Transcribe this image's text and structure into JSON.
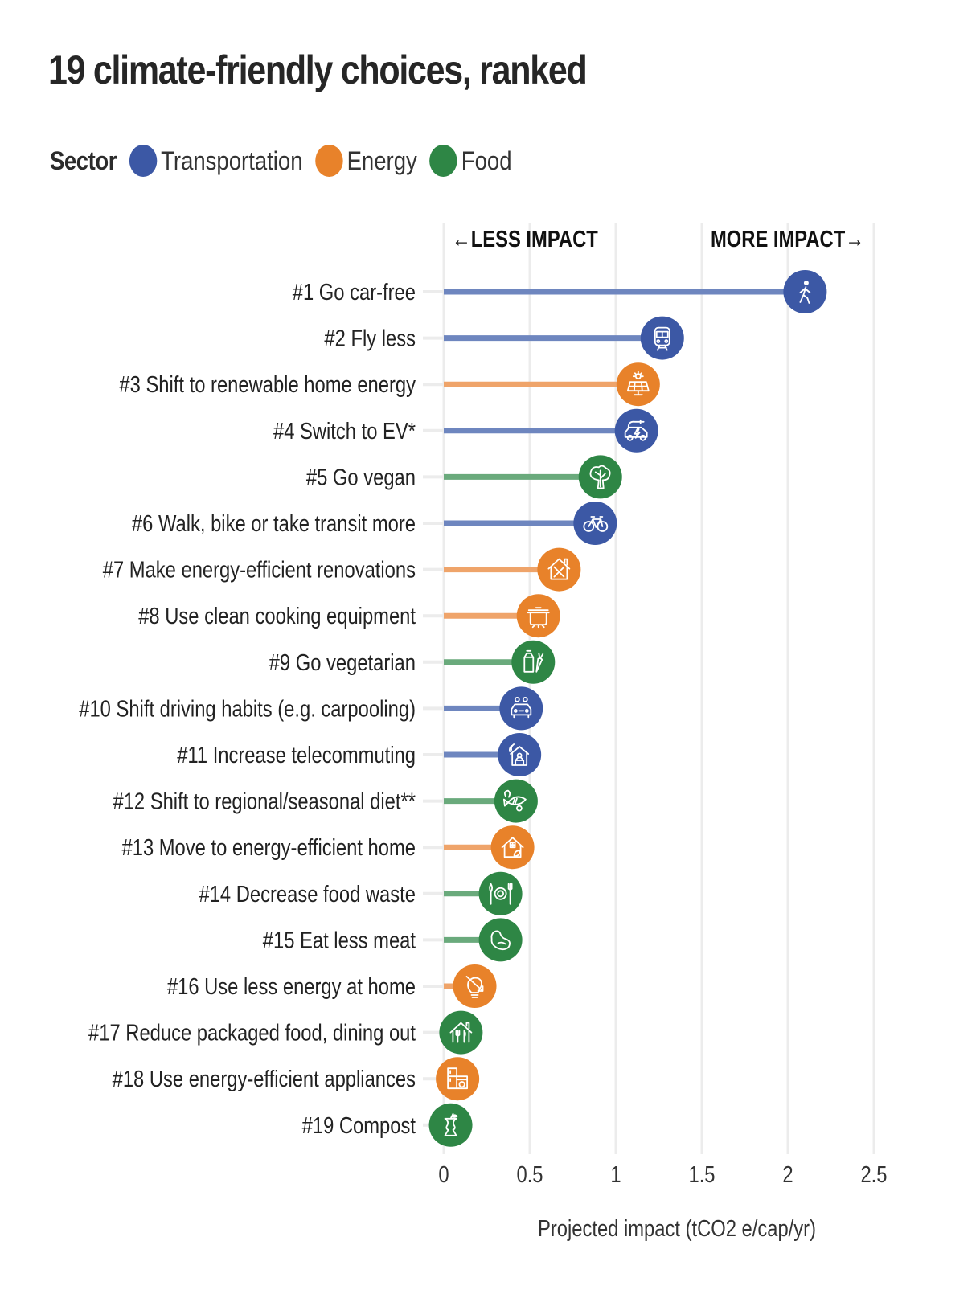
{
  "title": "19 climate-friendly choices, ranked",
  "legend": {
    "title": "Sector",
    "items": [
      {
        "label": "Transportation",
        "color": "#3c58a5"
      },
      {
        "label": "Energy",
        "color": "#e8822a"
      },
      {
        "label": "Food",
        "color": "#2e8645"
      }
    ]
  },
  "chart_data": {
    "type": "lollipop-bar",
    "title": "19 climate-friendly choices, ranked",
    "xlabel": "Projected impact (tCO2 e/cap/yr)",
    "ylabel": "",
    "xlim": [
      0,
      2.5
    ],
    "xticks": [
      0,
      0.5,
      1,
      1.5,
      2,
      2.5
    ],
    "xtick_labels": [
      "0",
      "0.5",
      "1",
      "1.5",
      "2",
      "2.5"
    ],
    "grid": true,
    "legend_position": "top-left",
    "direction_labels": {
      "less": "←LESS IMPACT",
      "more": "MORE IMPACT→"
    },
    "sector_colors": {
      "Transportation": {
        "dot": "#3c58a5",
        "line": "#6e86bf"
      },
      "Energy": {
        "dot": "#e8822a",
        "line": "#efa46a"
      },
      "Food": {
        "dot": "#2e8645",
        "line": "#6aaa7c"
      }
    },
    "categories": [
      "#1 Go car-free",
      "#2 Fly less",
      "#3 Shift to renewable home energy",
      "#4 Switch to EV*",
      "#5 Go vegan",
      "#6 Walk, bike or take transit more",
      "#7 Make energy-efficient renovations",
      "#8 Use clean cooking equipment",
      "#9 Go vegetarian",
      "#10 Shift driving habits (e.g. carpooling)",
      "#11 Increase telecommuting",
      "#12 Shift to regional/seasonal diet**",
      "#13 Move to energy-efficient home",
      "#14 Decrease food waste",
      "#15 Eat less meat",
      "#16 Use less energy at home",
      "#17 Reduce packaged food, dining out",
      "#18 Use energy-efficient appliances",
      "#19 Compost"
    ],
    "sectors": [
      "Transportation",
      "Transportation",
      "Energy",
      "Transportation",
      "Food",
      "Transportation",
      "Energy",
      "Energy",
      "Food",
      "Transportation",
      "Transportation",
      "Food",
      "Energy",
      "Food",
      "Food",
      "Energy",
      "Food",
      "Energy",
      "Food"
    ],
    "icons": [
      "walking-person-icon",
      "train-icon",
      "solar-panel-icon",
      "electric-car-icon",
      "leafy-greens-icon",
      "bicycle-icon",
      "home-repair-icon",
      "cooking-pot-icon",
      "milk-carrot-icon",
      "carpool-icon",
      "home-office-icon",
      "fish-vegetables-icon",
      "efficient-home-icon",
      "plate-cutlery-icon",
      "bean-icon",
      "lightbulb-down-icon",
      "restaurant-home-icon",
      "appliances-icon",
      "apple-core-icon"
    ],
    "values": [
      2.1,
      1.27,
      1.13,
      1.12,
      0.91,
      0.88,
      0.67,
      0.55,
      0.52,
      0.45,
      0.44,
      0.42,
      0.4,
      0.33,
      0.33,
      0.18,
      0.1,
      0.08,
      0.04
    ]
  }
}
